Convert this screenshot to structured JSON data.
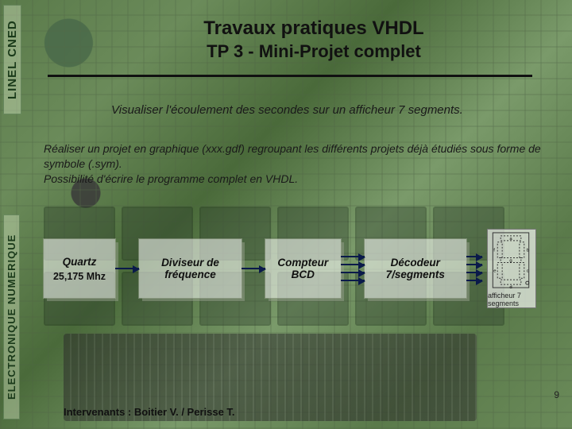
{
  "sidebar": {
    "top_label": "LINEL  CNED",
    "bottom_label": "ELECTRONIQUE NUMERIQUE"
  },
  "header": {
    "title_line1": "Travaux pratiques VHDL",
    "title_line2": "TP 3 - Mini-Projet complet"
  },
  "subtitle": "Visualiser l'écoulement des secondes sur un afficheur 7 segments.",
  "paragraph": "Réaliser un projet en graphique (xxx.gdf) regroupant les différents projets déjà étudiés sous forme de symbole (.sym).\nPossibilité d'écrire le programme complet en VHDL.",
  "diagram": {
    "type": "flowchart",
    "arrow_color": "#0a1a4a",
    "node_bg": "rgba(255,255,255,0.55)",
    "nodes": [
      {
        "id": "quartz",
        "title": "Quartz",
        "sub": "25,175 Mhz"
      },
      {
        "id": "divider",
        "title": "Diviseur de fréquence",
        "sub": ""
      },
      {
        "id": "counter",
        "title": "Compteur BCD",
        "sub": ""
      },
      {
        "id": "decoder",
        "title": "Décodeur 7/segments",
        "sub": ""
      }
    ],
    "edges": [
      {
        "from": "quartz",
        "to": "divider",
        "lines": 1
      },
      {
        "from": "divider",
        "to": "counter",
        "lines": 1
      },
      {
        "from": "counter",
        "to": "decoder",
        "lines": 4
      },
      {
        "from": "decoder",
        "to": "display",
        "lines": 4
      }
    ],
    "display": {
      "caption": "afficheur 7 segments",
      "segments": [
        "a",
        "b",
        "c",
        "d",
        "e",
        "f",
        "g"
      ]
    }
  },
  "footer": {
    "intervenants": "Intervenants : Boitier V. / Perisse T."
  },
  "page_number": "9",
  "colors": {
    "background_base": "#5a7a4a",
    "title_text": "#111111",
    "hr": "#111111",
    "sidebar_text": "#1a3a1a"
  }
}
